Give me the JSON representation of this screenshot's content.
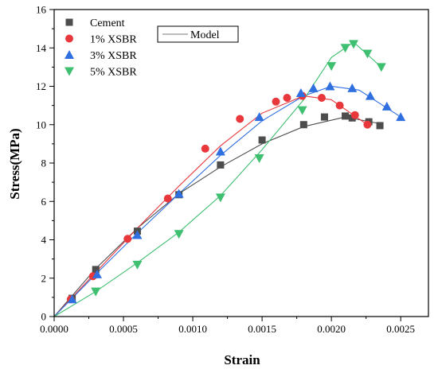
{
  "chart_data": {
    "type": "scatter",
    "xlabel": "Strain",
    "ylabel": "Stress(MPa)",
    "xlim": [
      0,
      0.0027
    ],
    "ylim": [
      0,
      16
    ],
    "xticks": [
      0,
      0.0005,
      0.001,
      0.0015,
      0.002,
      0.0025
    ],
    "xtick_labels": [
      "0.0000",
      "0.0005",
      "0.0010",
      "0.0015",
      "0.0020",
      "0.0025"
    ],
    "yticks": [
      0,
      2,
      4,
      6,
      8,
      10,
      12,
      14,
      16
    ],
    "ytick_labels": [
      "0",
      "2",
      "4",
      "6",
      "8",
      "10",
      "12",
      "14",
      "16"
    ],
    "grid": false,
    "legend_position": "top-left",
    "model_label": "Model",
    "series": [
      {
        "name": "Cement",
        "marker": "square",
        "color": "#4d4d4d",
        "points": [
          [
            0.00013,
            0.95
          ],
          [
            0.0003,
            2.45
          ],
          [
            0.0006,
            4.45
          ],
          [
            0.0009,
            6.35
          ],
          [
            0.0012,
            7.9
          ],
          [
            0.0015,
            9.2
          ],
          [
            0.0018,
            10.0
          ],
          [
            0.00195,
            10.4
          ],
          [
            0.0021,
            10.45
          ],
          [
            0.00215,
            10.35
          ],
          [
            0.00227,
            10.15
          ],
          [
            0.00235,
            9.95
          ]
        ],
        "model": [
          [
            0,
            0
          ],
          [
            0.0003,
            2.5
          ],
          [
            0.0006,
            4.6
          ],
          [
            0.0009,
            6.4
          ],
          [
            0.0012,
            7.8
          ],
          [
            0.0015,
            9.0
          ],
          [
            0.0018,
            9.9
          ],
          [
            0.0021,
            10.4
          ],
          [
            0.00235,
            10.05
          ]
        ]
      },
      {
        "name": "1% XSBR",
        "marker": "circle",
        "color": "#e8383b",
        "points": [
          [
            0.00012,
            0.9
          ],
          [
            0.00028,
            2.1
          ],
          [
            0.00053,
            4.05
          ],
          [
            0.00082,
            6.15
          ],
          [
            0.00109,
            8.75
          ],
          [
            0.00134,
            10.3
          ],
          [
            0.0016,
            11.2
          ],
          [
            0.00168,
            11.4
          ],
          [
            0.00179,
            11.5
          ],
          [
            0.00193,
            11.4
          ],
          [
            0.00206,
            11.0
          ],
          [
            0.00217,
            10.5
          ],
          [
            0.00226,
            10.0
          ]
        ],
        "model": [
          [
            0,
            0
          ],
          [
            0.0003,
            2.3
          ],
          [
            0.0006,
            4.6
          ],
          [
            0.0009,
            6.8
          ],
          [
            0.0012,
            8.9
          ],
          [
            0.0015,
            10.6
          ],
          [
            0.0018,
            11.5
          ],
          [
            0.002,
            11.3
          ],
          [
            0.00226,
            10.0
          ]
        ]
      },
      {
        "name": "3% XSBR",
        "marker": "triangle-up",
        "color": "#2f6fe0",
        "points": [
          [
            0.00013,
            0.9
          ],
          [
            0.00031,
            2.2
          ],
          [
            0.0006,
            4.25
          ],
          [
            0.0009,
            6.4
          ],
          [
            0.0012,
            8.6
          ],
          [
            0.00148,
            10.4
          ],
          [
            0.00178,
            11.65
          ],
          [
            0.00187,
            11.9
          ],
          [
            0.00199,
            12.0
          ],
          [
            0.00215,
            11.9
          ],
          [
            0.00228,
            11.5
          ],
          [
            0.0024,
            10.95
          ],
          [
            0.0025,
            10.4
          ]
        ],
        "model": [
          [
            0,
            0
          ],
          [
            0.0003,
            2.2
          ],
          [
            0.0006,
            4.35
          ],
          [
            0.0009,
            6.4
          ],
          [
            0.0012,
            8.4
          ],
          [
            0.0015,
            10.2
          ],
          [
            0.0018,
            11.5
          ],
          [
            0.002,
            12.0
          ],
          [
            0.0022,
            11.8
          ],
          [
            0.0025,
            10.4
          ]
        ]
      },
      {
        "name": "5% XSBR",
        "marker": "triangle-down",
        "color": "#3fbf70",
        "points": [
          [
            0.0003,
            1.3
          ],
          [
            0.0006,
            2.7
          ],
          [
            0.0009,
            4.3
          ],
          [
            0.0012,
            6.2
          ],
          [
            0.00148,
            8.25
          ],
          [
            0.00179,
            10.75
          ],
          [
            0.002,
            13.05
          ],
          [
            0.0021,
            14.0
          ],
          [
            0.00216,
            14.2
          ],
          [
            0.00226,
            13.7
          ],
          [
            0.00236,
            13.0
          ]
        ],
        "model": [
          [
            0,
            0
          ],
          [
            0.0003,
            1.3
          ],
          [
            0.0006,
            2.8
          ],
          [
            0.0009,
            4.4
          ],
          [
            0.0012,
            6.3
          ],
          [
            0.0015,
            8.7
          ],
          [
            0.0018,
            11.3
          ],
          [
            0.002,
            13.5
          ],
          [
            0.00216,
            14.3
          ],
          [
            0.00236,
            13.0
          ]
        ]
      }
    ]
  }
}
